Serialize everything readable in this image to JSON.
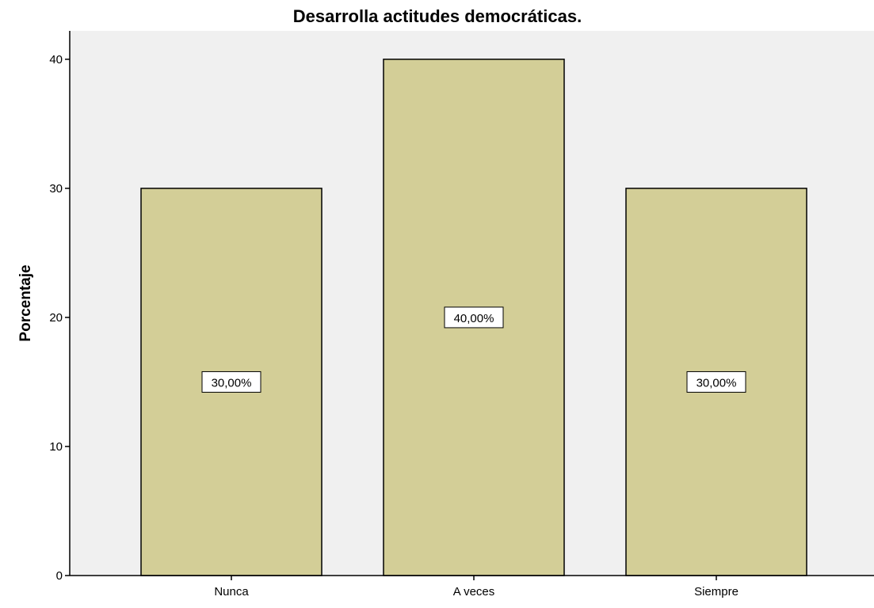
{
  "chart_data": {
    "type": "bar",
    "title": "Desarrolla actitudes democráticas.",
    "ylabel": "Porcentaje",
    "xlabel": "",
    "categories": [
      "Nunca",
      "A veces",
      "Siempre"
    ],
    "values": [
      30,
      40,
      30
    ],
    "data_labels": [
      "30,00%",
      "40,00%",
      "30,00%"
    ],
    "yticks": [
      0,
      10,
      20,
      30,
      40
    ],
    "ylim": [
      0,
      42.2
    ],
    "grid": false,
    "colors": {
      "plot_background": "#f0f0f0",
      "bar_fill": "#d3ce97",
      "bar_stroke": "#000000",
      "axis": "#000000"
    }
  }
}
